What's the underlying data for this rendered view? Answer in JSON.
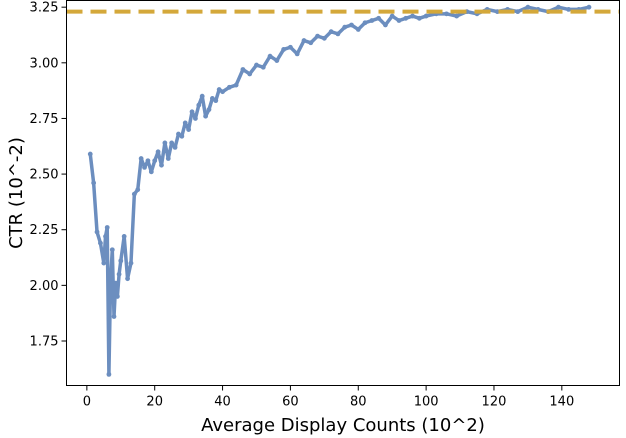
{
  "chart_data": {
    "type": "line",
    "title": "",
    "xlabel": "Average Display Counts (10^2)",
    "ylabel": "CTR (10^-2)",
    "xlim": [
      -6,
      157
    ],
    "ylim": [
      1.55,
      3.28
    ],
    "xticks": [
      0,
      20,
      40,
      60,
      80,
      100,
      120,
      140
    ],
    "yticks": [
      1.75,
      2.0,
      2.25,
      2.5,
      2.75,
      3.0,
      3.25
    ],
    "grid": false,
    "series": [
      {
        "line_color": "#6c8ebf",
        "line_style": "solid",
        "marker": "circle",
        "x": [
          1,
          2,
          3,
          4,
          5,
          5.5,
          6,
          6.5,
          7,
          7.5,
          8,
          8.5,
          9,
          9.5,
          10,
          11,
          12,
          13,
          14,
          15,
          16,
          17,
          18,
          19,
          20,
          21,
          22,
          23,
          24,
          25,
          26,
          27,
          28,
          29,
          30,
          31,
          32,
          33,
          34,
          35,
          36,
          37,
          38,
          39,
          40,
          42,
          44,
          46,
          48,
          50,
          52,
          54,
          56,
          58,
          60,
          62,
          64,
          66,
          68,
          70,
          72,
          74,
          76,
          78,
          80,
          82,
          84,
          86,
          88,
          90,
          92,
          94,
          96,
          98,
          100,
          103,
          106,
          109,
          112,
          115,
          118,
          121,
          124,
          127,
          130,
          133,
          136,
          139,
          142,
          145,
          148
        ],
        "y": [
          2.59,
          2.46,
          2.24,
          2.19,
          2.1,
          2.22,
          2.26,
          1.6,
          2.03,
          2.16,
          1.86,
          2.01,
          1.95,
          2.05,
          2.11,
          2.22,
          2.03,
          2.1,
          2.41,
          2.43,
          2.57,
          2.53,
          2.56,
          2.51,
          2.56,
          2.6,
          2.54,
          2.64,
          2.57,
          2.64,
          2.62,
          2.68,
          2.67,
          2.73,
          2.7,
          2.78,
          2.75,
          2.81,
          2.85,
          2.76,
          2.79,
          2.84,
          2.83,
          2.88,
          2.87,
          2.89,
          2.9,
          2.97,
          2.95,
          2.99,
          2.98,
          3.03,
          3.01,
          3.06,
          3.07,
          3.04,
          3.1,
          3.09,
          3.12,
          3.11,
          3.14,
          3.13,
          3.16,
          3.17,
          3.15,
          3.18,
          3.19,
          3.2,
          3.17,
          3.21,
          3.19,
          3.2,
          3.21,
          3.2,
          3.21,
          3.22,
          3.22,
          3.21,
          3.23,
          3.22,
          3.24,
          3.23,
          3.24,
          3.23,
          3.25,
          3.24,
          3.23,
          3.25,
          3.24,
          3.24,
          3.25
        ]
      }
    ],
    "reference_line": {
      "y": 3.23,
      "color": "#d4a83a",
      "style": "dashed"
    }
  }
}
